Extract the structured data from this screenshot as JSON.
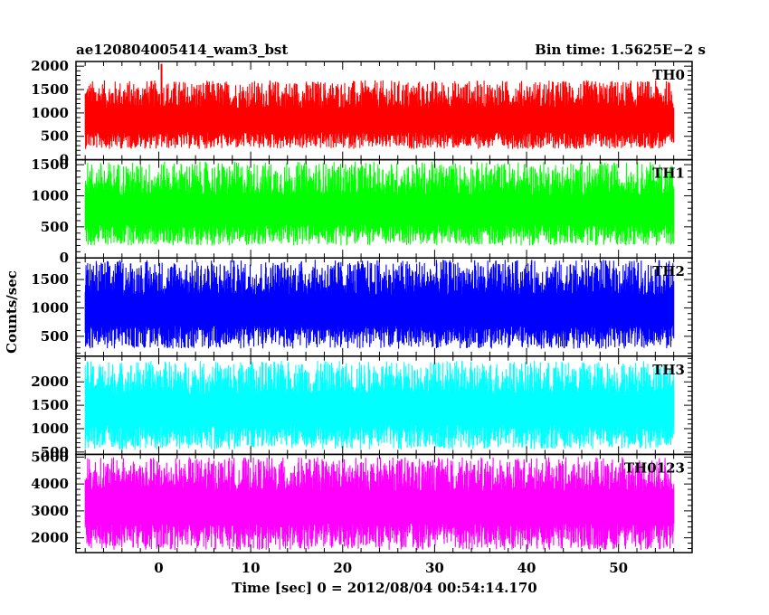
{
  "chart_data": {
    "type": "line",
    "title": "ae120804005414_wam3_bst",
    "bin_time_label": "Bin time: 1.5625E−2 s",
    "xlabel": "Time [sec] 0 = 2012/08/04 00:54:14.170",
    "ylabel": "Counts/sec",
    "xlim": [
      -9,
      58
    ],
    "x_data_range": [
      -8,
      56
    ],
    "x_ticks": [
      0,
      10,
      20,
      30,
      40,
      50
    ],
    "x_tick_labels": [
      "0",
      "10",
      "20",
      "30",
      "40",
      "50"
    ],
    "panels": [
      {
        "name": "TH0",
        "color": "#ff0000",
        "ylim": [
          0,
          2100
        ],
        "y_ticks": [
          0,
          500,
          1000,
          1500,
          2000
        ],
        "y_tick_labels": [
          "0",
          "500",
          "1000",
          "1500",
          "2000"
        ],
        "signal_mean": 780,
        "noise_low": 230,
        "noise_high": 1700,
        "peak": {
          "x": 0.3,
          "y": 2050
        }
      },
      {
        "name": "TH1",
        "color": "#00ff00",
        "ylim": [
          0,
          1580
        ],
        "y_ticks": [
          0,
          500,
          1000,
          1500
        ],
        "y_tick_labels": [
          "0",
          "500",
          "1000",
          "1500"
        ],
        "signal_mean": 720,
        "noise_low": 200,
        "noise_high": 1550
      },
      {
        "name": "TH2",
        "color": "#0000ff",
        "ylim": [
          150,
          1880
        ],
        "y_ticks": [
          500,
          1000,
          1500
        ],
        "y_tick_labels": [
          "500",
          "1000",
          "1500"
        ],
        "signal_mean": 900,
        "noise_low": 280,
        "noise_high": 1850
      },
      {
        "name": "TH3",
        "color": "#00ffff",
        "ylim": [
          450,
          2550
        ],
        "y_ticks": [
          500,
          1000,
          1500,
          2000
        ],
        "y_tick_labels": [
          "500",
          "1000",
          "1500",
          "2000"
        ],
        "signal_mean": 1350,
        "noise_low": 550,
        "noise_high": 2450
      },
      {
        "name": "TH0123",
        "color": "#ff00ff",
        "ylim": [
          1450,
          5100
        ],
        "y_ticks": [
          2000,
          3000,
          4000,
          5000
        ],
        "y_tick_labels": [
          "2000",
          "3000",
          "4000",
          "5000"
        ],
        "signal_mean": 3050,
        "noise_low": 1550,
        "noise_high": 5000
      }
    ]
  }
}
